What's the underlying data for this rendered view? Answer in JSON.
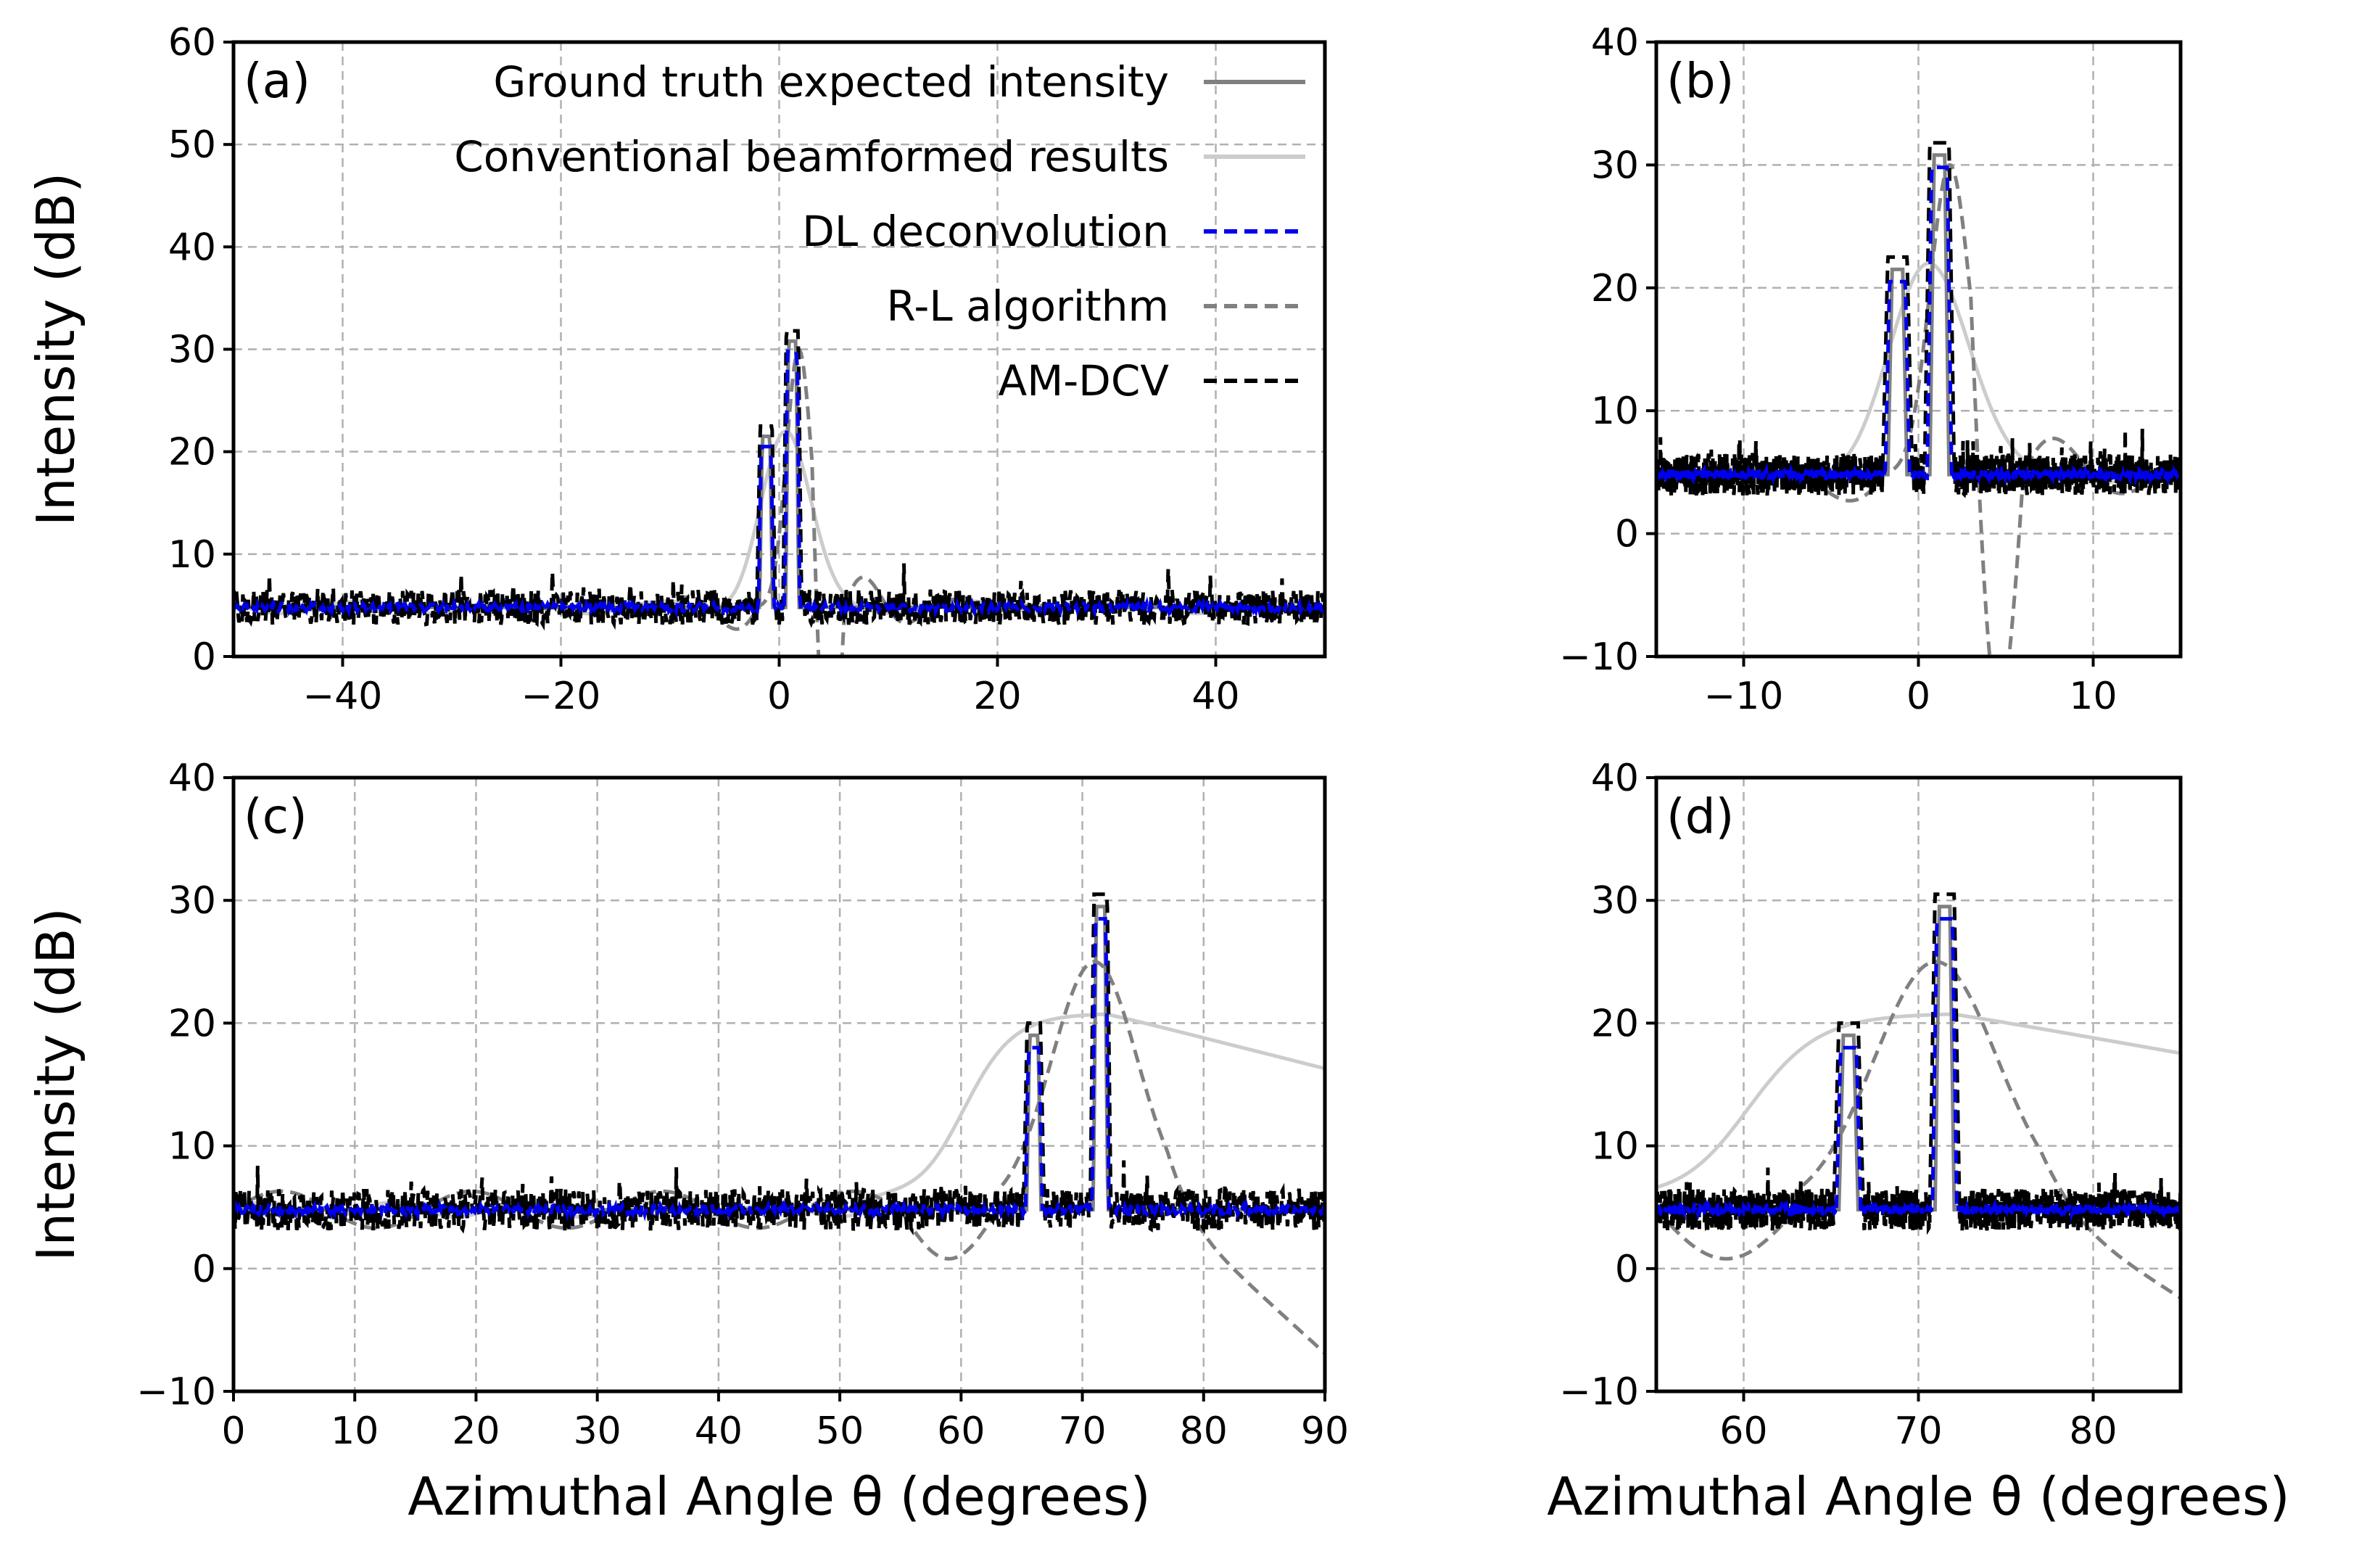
{
  "chart_data": [
    {
      "type": "line",
      "panel_label": "(a)",
      "xlim": [
        -50,
        50
      ],
      "ylim": [
        0,
        60
      ],
      "xticks": [
        -40,
        -20,
        0,
        20,
        40
      ],
      "yticks": [
        0,
        10,
        20,
        30,
        40,
        50,
        60
      ],
      "xlabel": "",
      "ylabel": "Intensity (dB)",
      "grid": true,
      "legend": "top-right",
      "sources": [
        {
          "angle": -1.2,
          "peak": 21.5
        },
        {
          "angle": 1.2,
          "peak": 30.8
        }
      ],
      "baseline_db": 4.8
    },
    {
      "type": "line",
      "panel_label": "(b)",
      "xlim": [
        -15,
        15
      ],
      "ylim": [
        -10,
        40
      ],
      "xticks": [
        -10,
        0,
        10
      ],
      "yticks": [
        -10,
        0,
        10,
        20,
        30,
        40
      ],
      "xlabel": "",
      "ylabel": "",
      "grid": true,
      "sources": [
        {
          "angle": -1.2,
          "peak": 21.5
        },
        {
          "angle": 1.2,
          "peak": 30.8
        }
      ],
      "baseline_db": 4.8
    },
    {
      "type": "line",
      "panel_label": "(c)",
      "xlim": [
        0,
        90
      ],
      "ylim": [
        -10,
        40
      ],
      "xticks": [
        0,
        10,
        20,
        30,
        40,
        50,
        60,
        70,
        80,
        90
      ],
      "yticks": [
        -10,
        0,
        10,
        20,
        30,
        40
      ],
      "xlabel": "Azimuthal Angle θ (degrees)",
      "ylabel": "Intensity (dB)",
      "grid": true,
      "sources": [
        {
          "angle": 66,
          "peak": 19
        },
        {
          "angle": 71.5,
          "peak": 29.5
        }
      ],
      "baseline_db": 4.8
    },
    {
      "type": "line",
      "panel_label": "(d)",
      "xlim": [
        55,
        85
      ],
      "ylim": [
        -10,
        40
      ],
      "xticks": [
        60,
        70,
        80
      ],
      "yticks": [
        -10,
        0,
        10,
        20,
        30,
        40
      ],
      "xlabel": "Azimuthal Angle θ (degrees)",
      "ylabel": "",
      "grid": true,
      "sources": [
        {
          "angle": 66,
          "peak": 19
        },
        {
          "angle": 71.5,
          "peak": 29.5
        }
      ],
      "baseline_db": 4.8
    }
  ],
  "legend": {
    "entries": [
      {
        "key": "gt",
        "label": "Ground truth expected intensity",
        "color": "#808080",
        "dash": "solid"
      },
      {
        "key": "cbf",
        "label": "Conventional beamformed results",
        "color": "#cccccc",
        "dash": "solid"
      },
      {
        "key": "dl",
        "label": "DL deconvolution",
        "color": "#0000ee",
        "dash": "dashed"
      },
      {
        "key": "rl",
        "label": "R-L algorithm",
        "color": "#808080",
        "dash": "dashed"
      },
      {
        "key": "amdcv",
        "label": "AM-DCV",
        "color": "#000000",
        "dash": "dashed"
      }
    ]
  }
}
